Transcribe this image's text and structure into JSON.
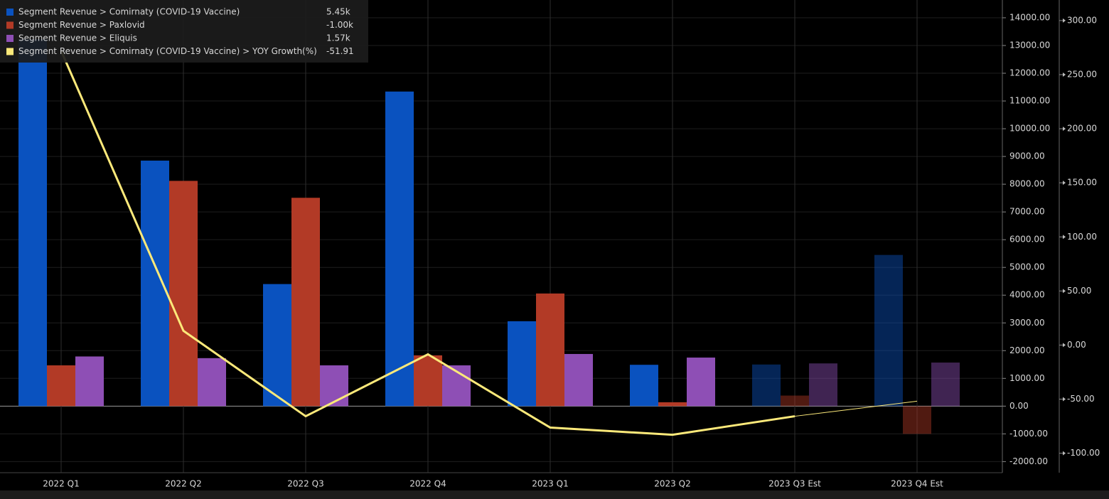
{
  "chart_data": {
    "type": "bar",
    "categories": [
      "2022 Q1",
      "2022 Q2",
      "2022 Q3",
      "2022 Q4",
      "2023 Q1",
      "2023 Q2",
      "2023 Q3 Est",
      "2023 Q4 Est"
    ],
    "dimmed_from": 6,
    "series": [
      {
        "name": "Segment Revenue > Comirnaty (COVID-19 Vaccine)",
        "color": "#0a52bf",
        "last_label": "5.45k",
        "values": [
          13230,
          8850,
          4400,
          11340,
          3060,
          1490,
          1500,
          5450
        ]
      },
      {
        "name": "Segment Revenue > Paxlovid",
        "color": "#b23a26",
        "last_label": "-1.00k",
        "values": [
          1470,
          8120,
          7510,
          1830,
          4060,
          140,
          380,
          -1000
        ]
      },
      {
        "name": "Segment Revenue > Eliquis",
        "color": "#8e4fb5",
        "last_label": "1.57k",
        "values": [
          1790,
          1730,
          1470,
          1470,
          1880,
          1750,
          1540,
          1570
        ]
      },
      {
        "name": "Segment Revenue > Comirnaty (COVID-19 Vaccine) > YOY Growth(%)",
        "color": "#fce97a",
        "last_label": "-51.91",
        "type": "line",
        "axis": "y2",
        "values": [
          272,
          13.2,
          -65.8,
          -8.6,
          -76.3,
          -82.9,
          -65.8,
          -51.91
        ]
      }
    ],
    "ylim": [
      -2400,
      14640
    ],
    "yticks": [
      {
        "value": -2000,
        "label": "-2000.00"
      },
      {
        "value": -1000,
        "label": "-1000.00"
      },
      {
        "value": 0,
        "label": "0.00"
      },
      {
        "value": 1000,
        "label": "1000.00"
      },
      {
        "value": 2000,
        "label": "2000.00"
      },
      {
        "value": 3000,
        "label": "3000.00"
      },
      {
        "value": 4000,
        "label": "4000.00"
      },
      {
        "value": 5000,
        "label": "5000.00"
      },
      {
        "value": 6000,
        "label": "6000.00"
      },
      {
        "value": 7000,
        "label": "7000.00"
      },
      {
        "value": 8000,
        "label": "8000.00"
      },
      {
        "value": 9000,
        "label": "9000.00"
      },
      {
        "value": 10000,
        "label": "10000.00"
      },
      {
        "value": 11000,
        "label": "11000.00"
      },
      {
        "value": 12000,
        "label": "12000.00"
      },
      {
        "value": 13000,
        "label": "13000.00"
      },
      {
        "value": 14000,
        "label": "14000.00"
      }
    ],
    "y2lim": [
      -118,
      319
    ],
    "y2ticks": [
      {
        "value": -100,
        "label": "-100.00"
      },
      {
        "value": -50,
        "label": "-50.00"
      },
      {
        "value": 0,
        "label": "0.00"
      },
      {
        "value": 50,
        "label": "50.00"
      },
      {
        "value": 100,
        "label": "100.00"
      },
      {
        "value": 150,
        "label": "150.00"
      },
      {
        "value": 200,
        "label": "200.00"
      },
      {
        "value": 250,
        "label": "250.00"
      },
      {
        "value": 300,
        "label": "300.00"
      }
    ],
    "grid": true
  }
}
